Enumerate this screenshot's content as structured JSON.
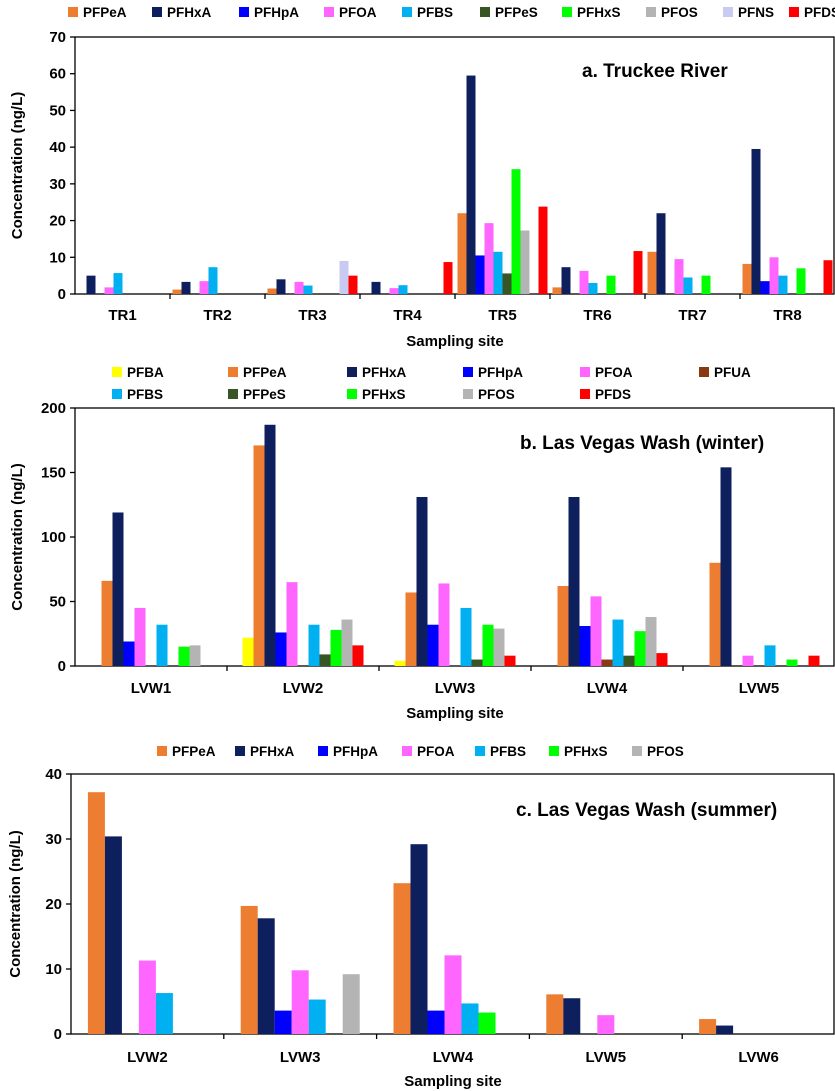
{
  "colors": {
    "PFBA": "#ffff00",
    "PFPeA": "#ed7d31",
    "PFHxA": "#0d1f5c",
    "PFHpA": "#0000ff",
    "PFOA": "#ff66ff",
    "PFUA": "#8b3a0f",
    "PFBS": "#00b0f0",
    "PFPeS": "#375623",
    "PFHxS": "#00ff00",
    "PFOS": "#b4b4b4",
    "PFNS": "#c9caf2",
    "PFDS": "#ff0000"
  },
  "chart_data": [
    {
      "type": "bar",
      "title": "a. Truckee River",
      "xlabel": "Sampling site",
      "ylabel": "Concentration (ng/L)",
      "ylim": [
        0,
        70
      ],
      "yticks": [
        0,
        10,
        20,
        30,
        40,
        50,
        60,
        70
      ],
      "ytick_labels": [
        "0",
        "10",
        "20",
        "30",
        "40",
        "50",
        "60",
        "70"
      ],
      "legend_position": "top",
      "categories": [
        "TR1",
        "TR2",
        "TR3",
        "TR4",
        "TR5",
        "TR6",
        "TR7",
        "TR8"
      ],
      "series": [
        {
          "name": "PFPeA",
          "values": [
            0,
            1.2,
            1.5,
            0,
            22,
            1.8,
            11.5,
            8.2
          ]
        },
        {
          "name": "PFHxA",
          "values": [
            5,
            3.3,
            4,
            3.3,
            59.5,
            7.3,
            22,
            39.5
          ]
        },
        {
          "name": "PFHpA",
          "values": [
            0,
            0,
            0,
            0,
            10.5,
            0,
            0,
            3.5
          ]
        },
        {
          "name": "PFOA",
          "values": [
            1.8,
            3.5,
            3.3,
            1.6,
            19.3,
            6.3,
            9.5,
            10
          ]
        },
        {
          "name": "PFBS",
          "values": [
            5.7,
            7.3,
            2.3,
            2.4,
            11.5,
            3,
            4.5,
            5
          ]
        },
        {
          "name": "PFPeS",
          "values": [
            0,
            0,
            0,
            0,
            5.6,
            0,
            0,
            0
          ]
        },
        {
          "name": "PFHxS",
          "values": [
            0,
            0,
            0,
            0,
            34,
            5,
            5,
            7
          ]
        },
        {
          "name": "PFOS",
          "values": [
            0,
            0,
            0,
            0,
            17.3,
            0,
            0,
            0
          ]
        },
        {
          "name": "PFNS",
          "values": [
            0,
            0,
            9,
            0,
            0,
            0,
            0,
            0
          ]
        },
        {
          "name": "PFDS",
          "values": [
            0,
            0,
            5,
            8.7,
            23.8,
            11.7,
            0,
            9.2
          ]
        }
      ]
    },
    {
      "type": "bar",
      "title": "b. Las Vegas Wash (winter)",
      "xlabel": "Sampling site",
      "ylabel": "Concentration (ng/L)",
      "ylim": [
        0,
        200
      ],
      "yticks": [
        0,
        50,
        100,
        150,
        200
      ],
      "ytick_labels": [
        "0",
        "50",
        "100",
        "150",
        "200"
      ],
      "legend_position": "top",
      "categories": [
        "LVW1",
        "LVW2",
        "LVW3",
        "LVW4",
        "LVW5"
      ],
      "series": [
        {
          "name": "PFBA",
          "values": [
            0,
            22,
            4,
            0,
            0
          ]
        },
        {
          "name": "PFPeA",
          "values": [
            66,
            171,
            57,
            62,
            80
          ]
        },
        {
          "name": "PFHxA",
          "values": [
            119,
            187,
            131,
            131,
            154
          ]
        },
        {
          "name": "PFHpA",
          "values": [
            19,
            26,
            32,
            31,
            0
          ]
        },
        {
          "name": "PFOA",
          "values": [
            45,
            65,
            64,
            54,
            8
          ]
        },
        {
          "name": "PFUA",
          "values": [
            0,
            0,
            0,
            5,
            0
          ]
        },
        {
          "name": "PFBS",
          "values": [
            32,
            32,
            45,
            36,
            16
          ]
        },
        {
          "name": "PFPeS",
          "values": [
            0,
            9,
            5,
            8,
            0
          ]
        },
        {
          "name": "PFHxS",
          "values": [
            15,
            28,
            32,
            27,
            5
          ]
        },
        {
          "name": "PFOS",
          "values": [
            16,
            36,
            29,
            38,
            0
          ]
        },
        {
          "name": "PFDS",
          "values": [
            0,
            16,
            8,
            10,
            8
          ]
        }
      ]
    },
    {
      "type": "bar",
      "title": "c. Las Vegas Wash (summer)",
      "xlabel": "Sampling site",
      "ylabel": "Concentration (ng/L)",
      "ylim": [
        0,
        40
      ],
      "yticks": [
        0,
        10,
        20,
        30,
        40
      ],
      "ytick_labels": [
        "0",
        "10",
        "20",
        "30",
        "40"
      ],
      "legend_position": "top",
      "categories": [
        "LVW2",
        "LVW3",
        "LVW4",
        "LVW5",
        "LVW6"
      ],
      "series": [
        {
          "name": "PFPeA",
          "values": [
            37.2,
            19.7,
            23.2,
            6.1,
            2.3
          ]
        },
        {
          "name": "PFHxA",
          "values": [
            30.4,
            17.8,
            29.2,
            5.5,
            1.3
          ]
        },
        {
          "name": "PFHpA",
          "values": [
            0,
            3.6,
            3.6,
            0,
            0
          ]
        },
        {
          "name": "PFOA",
          "values": [
            11.3,
            9.8,
            12.1,
            2.9,
            0
          ]
        },
        {
          "name": "PFBS",
          "values": [
            6.3,
            5.3,
            4.7,
            0,
            0
          ]
        },
        {
          "name": "PFHxS",
          "values": [
            0,
            0,
            3.3,
            0,
            0
          ]
        },
        {
          "name": "PFOS",
          "values": [
            0,
            9.2,
            0,
            0,
            0
          ]
        }
      ]
    }
  ]
}
